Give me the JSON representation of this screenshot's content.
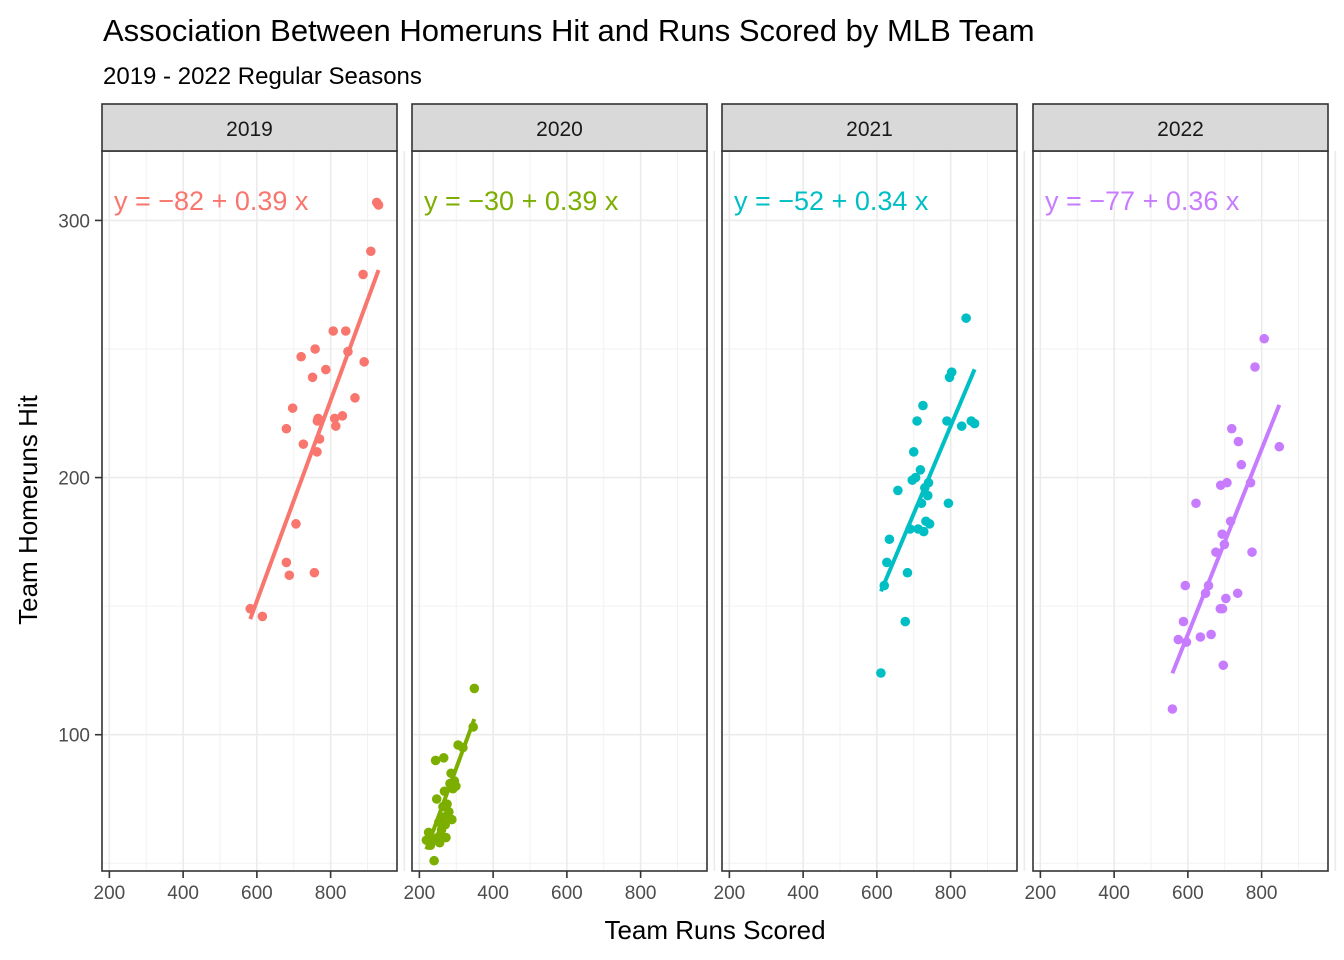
{
  "chart_data": {
    "type": "scatter",
    "title": "Association Between Homeruns Hit and Runs Scored by MLB Team",
    "subtitle": "2019 - 2022 Regular Seasons",
    "xlabel": "Team Runs Scored",
    "ylabel": "Team Homeruns Hit",
    "xlim": [
      180,
      980
    ],
    "ylim": [
      47,
      327
    ],
    "x_ticks": [
      200,
      400,
      600,
      800
    ],
    "y_ticks": [
      100,
      200,
      300
    ],
    "grid": true,
    "panels": [
      {
        "facet": "2019",
        "color": "#F8766D",
        "equation": "y = −82 + 0.39 x",
        "fit": {
          "intercept": -82,
          "slope": 0.39,
          "x_range": [
            582,
            930
          ]
        },
        "points": [
          [
            582,
            149
          ],
          [
            615,
            146
          ],
          [
            680,
            167
          ],
          [
            688,
            162
          ],
          [
            680,
            219
          ],
          [
            697,
            227
          ],
          [
            706,
            182
          ],
          [
            720,
            247
          ],
          [
            726,
            213
          ],
          [
            751,
            239
          ],
          [
            756,
            163
          ],
          [
            758,
            250
          ],
          [
            763,
            210
          ],
          [
            764,
            222
          ],
          [
            766,
            223
          ],
          [
            770,
            215
          ],
          [
            787,
            242
          ],
          [
            807,
            257
          ],
          [
            811,
            223
          ],
          [
            814,
            220
          ],
          [
            832,
            224
          ],
          [
            841,
            257
          ],
          [
            847,
            249
          ],
          [
            866,
            231
          ],
          [
            888,
            279
          ],
          [
            891,
            245
          ],
          [
            909,
            288
          ],
          [
            925,
            307
          ],
          [
            930,
            306
          ]
        ]
      },
      {
        "facet": "2020",
        "color": "#7CAE00",
        "equation": "y = −30 + 0.39 x",
        "fit": {
          "intercept": -30,
          "slope": 0.39,
          "x_range": [
            219,
            349
          ]
        },
        "points": [
          [
            219,
            59
          ],
          [
            225,
            62
          ],
          [
            230,
            57
          ],
          [
            236,
            59
          ],
          [
            240,
            51
          ],
          [
            244,
            90
          ],
          [
            247,
            75
          ],
          [
            250,
            60
          ],
          [
            253,
            66
          ],
          [
            255,
            58
          ],
          [
            257,
            61
          ],
          [
            260,
            63
          ],
          [
            264,
            72
          ],
          [
            265,
            68
          ],
          [
            266,
            91
          ],
          [
            268,
            78
          ],
          [
            270,
            65
          ],
          [
            272,
            60
          ],
          [
            275,
            73
          ],
          [
            280,
            70
          ],
          [
            283,
            81
          ],
          [
            286,
            85
          ],
          [
            288,
            67
          ],
          [
            291,
            79
          ],
          [
            295,
            82
          ],
          [
            299,
            80
          ],
          [
            305,
            96
          ],
          [
            318,
            95
          ],
          [
            346,
            103
          ],
          [
            349,
            118
          ]
        ]
      },
      {
        "facet": "2021",
        "color": "#00BFC4",
        "equation": "y = −52 + 0.34 x",
        "fit": {
          "intercept": -52,
          "slope": 0.34,
          "x_range": [
            611,
            865
          ]
        },
        "points": [
          [
            611,
            124
          ],
          [
            620,
            158
          ],
          [
            627,
            167
          ],
          [
            634,
            176
          ],
          [
            657,
            195
          ],
          [
            677,
            144
          ],
          [
            683,
            163
          ],
          [
            690,
            180
          ],
          [
            696,
            199
          ],
          [
            700,
            210
          ],
          [
            705,
            200
          ],
          [
            709,
            222
          ],
          [
            712,
            180
          ],
          [
            718,
            203
          ],
          [
            721,
            190
          ],
          [
            725,
            228
          ],
          [
            727,
            179
          ],
          [
            730,
            196
          ],
          [
            733,
            183
          ],
          [
            738,
            193
          ],
          [
            740,
            198
          ],
          [
            743,
            182
          ],
          [
            790,
            222
          ],
          [
            794,
            190
          ],
          [
            797,
            239
          ],
          [
            803,
            241
          ],
          [
            830,
            220
          ],
          [
            842,
            262
          ],
          [
            856,
            222
          ],
          [
            865,
            221
          ]
        ]
      },
      {
        "facet": "2022",
        "color": "#C77CFF",
        "equation": "y = −77 + 0.36 x",
        "fit": {
          "intercept": -77,
          "slope": 0.36,
          "x_range": [
            558,
            848
          ]
        },
        "points": [
          [
            558,
            110
          ],
          [
            574,
            137
          ],
          [
            588,
            144
          ],
          [
            593,
            158
          ],
          [
            596,
            136
          ],
          [
            622,
            190
          ],
          [
            634,
            138
          ],
          [
            648,
            155
          ],
          [
            656,
            158
          ],
          [
            663,
            139
          ],
          [
            676,
            171
          ],
          [
            688,
            149
          ],
          [
            689,
            197
          ],
          [
            693,
            178
          ],
          [
            694,
            149
          ],
          [
            696,
            127
          ],
          [
            699,
            174
          ],
          [
            703,
            153
          ],
          [
            706,
            198
          ],
          [
            716,
            183
          ],
          [
            719,
            219
          ],
          [
            735,
            155
          ],
          [
            737,
            214
          ],
          [
            745,
            205
          ],
          [
            770,
            198
          ],
          [
            774,
            171
          ],
          [
            782,
            243
          ],
          [
            807,
            254
          ],
          [
            848,
            212
          ]
        ]
      }
    ]
  }
}
